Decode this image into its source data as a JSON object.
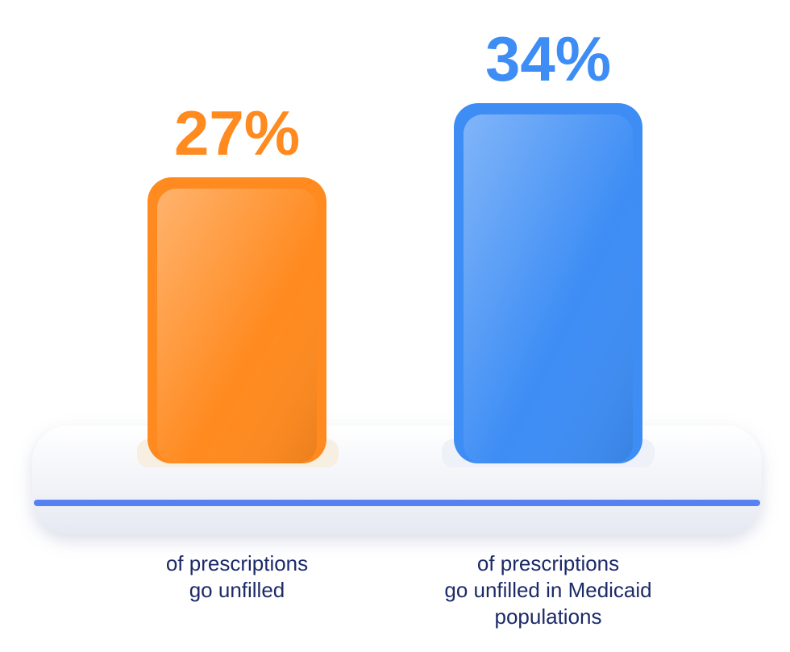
{
  "chart_data": {
    "type": "bar",
    "categories": [
      "of prescriptions\ngo unfilled",
      "of prescriptions\ngo unfilled in Medicaid\npopulations"
    ],
    "values": [
      27,
      34
    ],
    "value_labels": [
      "27%",
      "34%"
    ],
    "colors": [
      "#ff8a1f",
      "#3d8df5"
    ]
  }
}
